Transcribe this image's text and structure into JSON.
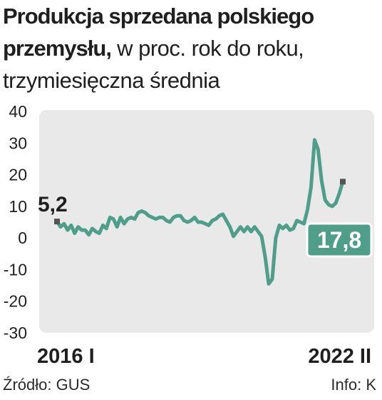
{
  "title": {
    "bold": "Produkcja sprzedana polskiego przemysłu,",
    "light_line1": "w proc. rok do roku,",
    "light_line2": "trzymiesięczna średnia"
  },
  "footer": {
    "source": "Źródło: GUS",
    "credit": "Info: K"
  },
  "colors": {
    "line": "#4f9e8a",
    "plot_background": "#e9e9e9",
    "end_label_background": "#4f9e8a",
    "marker": "#555555"
  },
  "chart_data": {
    "type": "line",
    "title": "Produkcja sprzedana polskiego przemysłu, w proc. rok do roku, trzymiesięczna średnia",
    "xlabel": "",
    "ylabel": "",
    "ylim": [
      -30,
      40
    ],
    "yticks": [
      -30,
      -20,
      -10,
      0,
      10,
      20,
      30,
      40
    ],
    "ytick_labels": [
      "-30",
      "-20",
      "-10",
      "0",
      "10",
      "20",
      "30",
      "40"
    ],
    "x_start_label": "2016 I",
    "x_end_label": "2022 II",
    "grid": false,
    "start_value_label": "5,2",
    "end_value_label": "17,8",
    "series": [
      {
        "values": [
          5.2,
          3.5,
          4.5,
          2.5,
          4.0,
          1.5,
          3.5,
          2.5,
          2.5,
          1.0,
          3.0,
          2.0,
          1.5,
          4.0,
          3.0,
          6.5,
          6.0,
          3.5,
          6.5,
          4.5,
          6.0,
          6.5,
          6.0,
          8.0,
          8.5,
          8.0,
          7.0,
          6.5,
          6.0,
          6.5,
          6.5,
          5.5,
          5.0,
          6.5,
          7.0,
          7.0,
          5.5,
          5.0,
          5.5,
          6.5,
          5.0,
          5.0,
          4.5,
          4.0,
          5.5,
          6.0,
          7.0,
          7.5,
          5.5,
          3.5,
          0.5,
          2.0,
          3.5,
          2.0,
          3.5,
          2.0,
          3.5,
          2.0,
          0.5,
          -6.0,
          -14.5,
          -13.0,
          0.0,
          4.0,
          3.0,
          4.0,
          2.5,
          3.0,
          5.5,
          5.0,
          4.5,
          9.0,
          16.0,
          31.0,
          28.0,
          18.0,
          12.0,
          10.5,
          10.0,
          11.0,
          14.0,
          17.8
        ]
      }
    ]
  }
}
